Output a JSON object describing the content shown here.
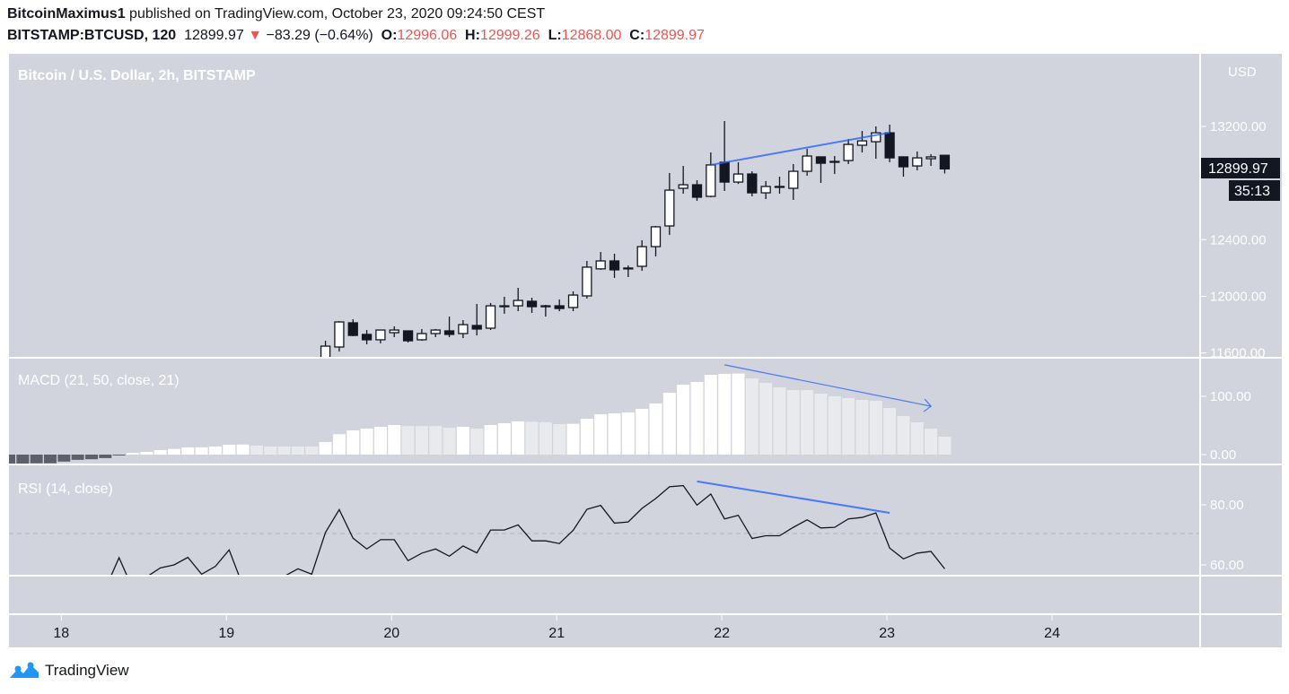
{
  "header": {
    "author": "BitcoinMaximus1",
    "published_text": "published on TradingView.com, October 23, 2020 09:24:50 CEST",
    "symbol": "BITSTAMP:BTCUSD, 120",
    "last": "12899.97",
    "change_icon": "triangle-down-icon",
    "change": "−83.29 (−0.64%)",
    "o_label": "O:",
    "o": "12996.06",
    "h_label": "H:",
    "h": "12999.26",
    "l_label": "L:",
    "l": "12868.00",
    "c_label": "C:",
    "c": "12899.97"
  },
  "colors": {
    "background": "#d1d4dc",
    "down_text": "#ef5350",
    "trendline": "#2962ff",
    "candle_dark": "#131722",
    "hist_negative": "#5d606b",
    "hist_rising": "#ffffff",
    "hist_falling": "#e9eaee"
  },
  "footer": {
    "brand": "TradingView"
  },
  "chart_data": [
    {
      "type": "candlestick",
      "title": "Bitcoin / U.S. Dollar, 2h, BITSTAMP",
      "currency": "USD",
      "interval": "2h",
      "start": "2020-10-19 14:00",
      "columns": [
        "open",
        "high",
        "low",
        "close"
      ],
      "candles": [
        [
          11540,
          11686,
          11500,
          11648
        ],
        [
          11642,
          11825,
          11610,
          11819
        ],
        [
          11813,
          11838,
          11718,
          11724
        ],
        [
          11731,
          11762,
          11661,
          11693
        ],
        [
          11693,
          11762,
          11668,
          11762
        ],
        [
          11743,
          11788,
          11712,
          11762
        ],
        [
          11756,
          11756,
          11674,
          11686
        ],
        [
          11693,
          11769,
          11686,
          11737
        ],
        [
          11737,
          11769,
          11712,
          11762
        ],
        [
          11756,
          11857,
          11712,
          11731
        ],
        [
          11737,
          11832,
          11705,
          11800
        ],
        [
          11794,
          11946,
          11724,
          11769
        ],
        [
          11775,
          11953,
          11762,
          11933
        ],
        [
          11927,
          11997,
          11877,
          11933
        ],
        [
          11933,
          12060,
          11895,
          11971
        ],
        [
          11965,
          11990,
          11883,
          11927
        ],
        [
          11933,
          11940,
          11857,
          11927
        ],
        [
          11933,
          11978,
          11895,
          11914
        ],
        [
          11921,
          12035,
          11895,
          12009
        ],
        [
          12003,
          12250,
          11984,
          12206
        ],
        [
          12194,
          12313,
          12187,
          12250
        ],
        [
          12250,
          12301,
          12130,
          12187
        ],
        [
          12200,
          12218,
          12136,
          12194
        ],
        [
          12212,
          12396,
          12180,
          12351
        ],
        [
          12351,
          12497,
          12282,
          12491
        ],
        [
          12497,
          12871,
          12434,
          12750
        ],
        [
          12763,
          12921,
          12725,
          12788
        ],
        [
          12788,
          12820,
          12674,
          12700
        ],
        [
          12706,
          13016,
          12700,
          12928
        ],
        [
          12947,
          13238,
          12744,
          12807
        ],
        [
          12807,
          12947,
          12794,
          12864
        ],
        [
          12864,
          12883,
          12706,
          12731
        ],
        [
          12731,
          12814,
          12687,
          12776
        ],
        [
          12776,
          12845,
          12725,
          12776
        ],
        [
          12763,
          12934,
          12681,
          12883
        ],
        [
          12883,
          13042,
          12852,
          12991
        ],
        [
          12985,
          12985,
          12801,
          12940
        ],
        [
          12953,
          12991,
          12864,
          12953
        ],
        [
          12959,
          13111,
          12934,
          13073
        ],
        [
          13067,
          13168,
          13016,
          13098
        ],
        [
          13092,
          13200,
          12972,
          13155
        ],
        [
          13155,
          13213,
          12947,
          12978
        ],
        [
          12985,
          12985,
          12845,
          12915
        ],
        [
          12921,
          13023,
          12890,
          12978
        ],
        [
          12972,
          13004,
          12921,
          12985
        ],
        [
          12996.06,
          12999.26,
          12868.0,
          12899.97
        ]
      ],
      "y_ticks": [
        "13200.00",
        "12400.00",
        "12000.00",
        "11600.00"
      ],
      "last_price_label": "12899.97",
      "countdown_label": "35:13",
      "trendline": {
        "from": [
          "2020-10-21 22:00",
          12928
        ],
        "to": [
          "2020-10-23 00:00",
          13156
        ]
      }
    },
    {
      "type": "bar",
      "title": "MACD (21, 50, close, 21)",
      "start": "2020-10-17 16:00",
      "interval": "2h",
      "histogram": [
        -18,
        -18,
        -15,
        -15,
        -12,
        -9,
        -8,
        -6,
        -1,
        3,
        4.6,
        7.7,
        9.7,
        12.3,
        12.5,
        13.8,
        17,
        17.2,
        15.4,
        13.8,
        13.8,
        13.8,
        13.8,
        21.5,
        35,
        41.5,
        44.6,
        47.7,
        50.8,
        49,
        49,
        49,
        46,
        47.7,
        44.6,
        50.8,
        53.9,
        57,
        56.5,
        55.4,
        52.3,
        52.8,
        61.5,
        69.2,
        70.8,
        72.3,
        78.5,
        87.7,
        106,
        120,
        124.6,
        136.9,
        138.5,
        139,
        130.8,
        123,
        115.4,
        110.8,
        110.8,
        104.6,
        100,
        96.9,
        93.8,
        92.3,
        80,
        66.2,
        55.4,
        44.6,
        30.8
      ],
      "y_ticks": [
        "100.00",
        "0.00"
      ],
      "trendline": {
        "from": [
          "2020-10-22 00:00",
          154
        ],
        "to": [
          "2020-10-23 06:00",
          83
        ],
        "arrow": true
      }
    },
    {
      "type": "line",
      "title": "RSI (14, close)",
      "start": "2020-10-17 16:00",
      "interval": "2h",
      "values": [
        50,
        50,
        50,
        50,
        50,
        50,
        50,
        52,
        62.4,
        52,
        56,
        59,
        60,
        62.5,
        56.9,
        59.5,
        65,
        53,
        52,
        53,
        56.2,
        58.7,
        56.9,
        70.8,
        78.4,
        68.9,
        65.3,
        68.4,
        68.4,
        61.4,
        63.9,
        65.3,
        62.9,
        66.3,
        64,
        71.6,
        71.6,
        73.3,
        68,
        68,
        67.1,
        71.5,
        78.5,
        79.8,
        73.9,
        74.3,
        78.8,
        82.1,
        86,
        86.4,
        79.9,
        83.6,
        75.3,
        76.5,
        68.8,
        69.7,
        69.7,
        72.5,
        75,
        72.3,
        72.5,
        75.3,
        75.8,
        77.3,
        65.6,
        62,
        63.9,
        64.5,
        58.7
      ],
      "y_ticks": [
        "80.00",
        "60.00"
      ],
      "reference_level": 70,
      "trendline": {
        "from": [
          "2020-10-21 20:00",
          87.8
        ],
        "to": [
          "2020-10-23 00:00",
          77.3
        ]
      }
    }
  ],
  "x_ticks": [
    "18",
    "19",
    "20",
    "21",
    "22",
    "23",
    "24"
  ]
}
